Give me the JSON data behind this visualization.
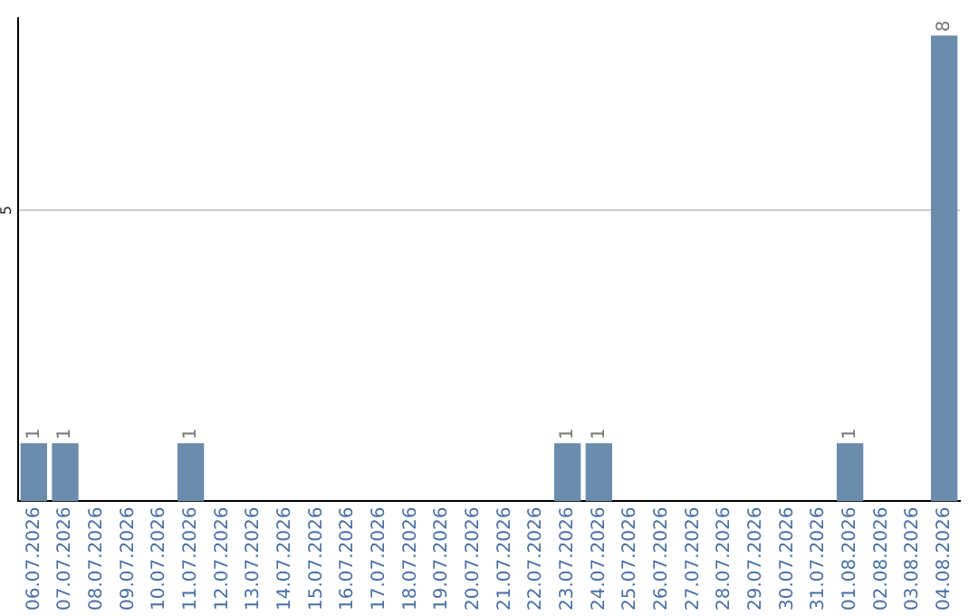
{
  "chart_data": {
    "type": "bar",
    "categories": [
      "06.07.2026",
      "07.07.2026",
      "08.07.2026",
      "09.07.2026",
      "10.07.2026",
      "11.07.2026",
      "12.07.2026",
      "13.07.2026",
      "14.07.2026",
      "15.07.2026",
      "16.07.2026",
      "17.07.2026",
      "18.07.2026",
      "19.07.2026",
      "20.07.2026",
      "21.07.2026",
      "22.07.2026",
      "23.07.2026",
      "24.07.2026",
      "25.07.2026",
      "26.07.2026",
      "27.07.2026",
      "28.07.2026",
      "29.07.2026",
      "30.07.2026",
      "31.07.2026",
      "01.08.2026",
      "02.08.2026",
      "03.08.2026",
      "04.08.2026"
    ],
    "values": [
      1,
      1,
      0,
      0,
      0,
      1,
      0,
      0,
      0,
      0,
      0,
      0,
      0,
      0,
      0,
      0,
      0,
      1,
      1,
      0,
      0,
      0,
      0,
      0,
      0,
      0,
      1,
      0,
      0,
      8
    ],
    "value_labels": [
      "1",
      "1",
      null,
      null,
      null,
      "1",
      null,
      null,
      null,
      null,
      null,
      null,
      null,
      null,
      null,
      null,
      null,
      "1",
      "1",
      null,
      null,
      null,
      null,
      null,
      null,
      null,
      "1",
      null,
      null,
      "8"
    ],
    "color": "#6b8cad",
    "ylim": [
      0,
      8.3
    ],
    "yticks": [
      5
    ],
    "grid": "y"
  }
}
